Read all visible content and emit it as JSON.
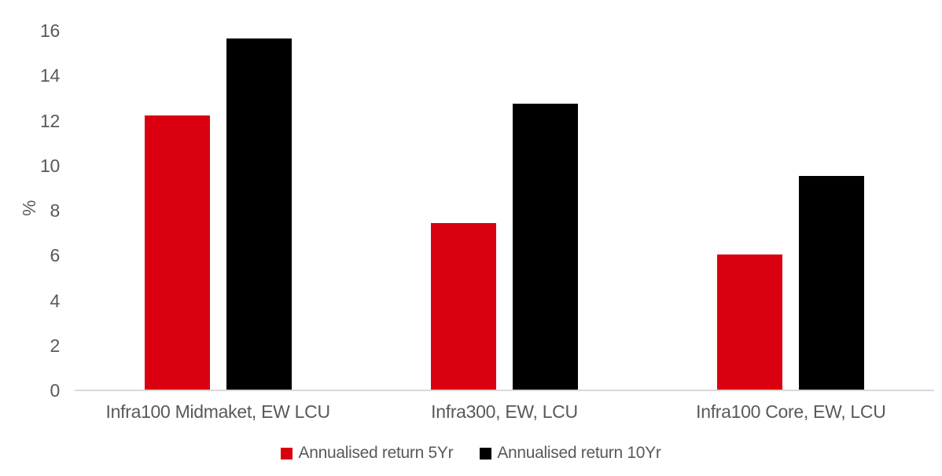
{
  "chart_data": {
    "type": "bar",
    "categories": [
      "Infra100 Midmaket, EW LCU",
      "Infra300, EW, LCU",
      "Infra100 Core, EW, LCU"
    ],
    "series": [
      {
        "name": "Annualised return 5Yr",
        "color": "#DA0010",
        "values": [
          12.2,
          7.4,
          6.0
        ]
      },
      {
        "name": "Annualised return 10Yr",
        "color": "#000000",
        "values": [
          15.6,
          12.7,
          9.5
        ]
      }
    ],
    "title": "",
    "xlabel": "",
    "ylabel": "%",
    "ylim": [
      0,
      16
    ],
    "ytick_step": 2,
    "grid": false,
    "legend_position": "bottom",
    "colors": {
      "text": "#595959",
      "axis_line": "#D9D9D9",
      "background": "#FFFFFF"
    }
  }
}
